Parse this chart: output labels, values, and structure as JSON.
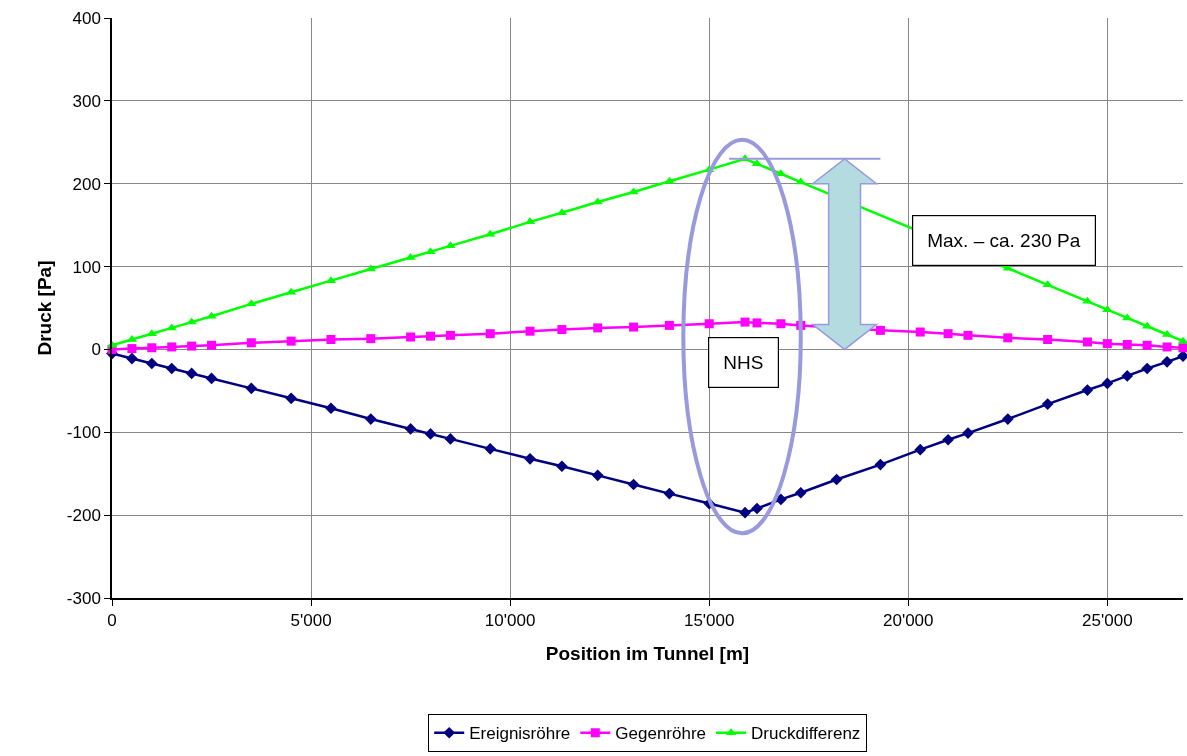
{
  "chart_data": {
    "type": "line",
    "xlabel": "Position im Tunnel [m]",
    "ylabel": "Druck [Pa]",
    "x": [
      0,
      500,
      1000,
      1500,
      2000,
      2500,
      3500,
      4500,
      5500,
      6500,
      7500,
      8000,
      8500,
      9500,
      10500,
      11300,
      12200,
      13100,
      14000,
      15000,
      15900,
      16200,
      16800,
      17300,
      18200,
      19300,
      20300,
      21000,
      21500,
      22500,
      23500,
      24500,
      25000,
      25500,
      26000,
      26500,
      26900
    ],
    "series": [
      {
        "name": "Ereignisröhre",
        "color": "#000080",
        "marker": "diamond",
        "values": [
          -5,
          -11,
          -17,
          -23,
          -29,
          -35,
          -47,
          -59,
          -71,
          -84,
          -96,
          -102,
          -108,
          -120,
          -132,
          -141,
          -152,
          -163,
          -174,
          -186,
          -197,
          -192,
          -181,
          -173,
          -157,
          -139,
          -121,
          -109,
          -101,
          -84,
          -66,
          -49,
          -41,
          -32,
          -23,
          -15,
          -8
        ]
      },
      {
        "name": "Gegenröhre",
        "color": "#ff00ff",
        "marker": "square",
        "values": [
          0,
          1,
          2,
          3,
          4,
          5,
          8,
          10,
          12,
          13,
          15,
          16,
          17,
          19,
          22,
          24,
          26,
          27,
          29,
          31,
          33,
          32,
          31,
          29,
          null,
          23,
          21,
          19,
          17,
          14,
          12,
          9,
          7,
          6,
          5,
          3,
          2
        ]
      },
      {
        "name": "Druckdifferenz",
        "color": "#00ff00",
        "marker": "triangle",
        "values": [
          5,
          12,
          19,
          26,
          33,
          40,
          55,
          69,
          83,
          97,
          111,
          118,
          125,
          139,
          154,
          165,
          178,
          190,
          203,
          217,
          230,
          224,
          212,
          202,
          null,
          null,
          null,
          null,
          null,
          98,
          78,
          58,
          48,
          38,
          28,
          18,
          10
        ]
      }
    ],
    "xlim": [
      0,
      26900
    ],
    "xticks": [
      0,
      {
        "value": 5000,
        "label": "5'000"
      },
      {
        "value": 10000,
        "label": "10'000"
      },
      {
        "value": 15000,
        "label": "15'000"
      },
      {
        "value": 20000,
        "label": "20'000"
      },
      {
        "value": 25000,
        "label": "25'000"
      }
    ],
    "ylim": [
      -300,
      400
    ],
    "yticks": [
      -300,
      -200,
      -100,
      0,
      100,
      200,
      300,
      400
    ],
    "grid": true,
    "legend": "bottom",
    "line_style": "solid",
    "annotations": [
      "NHS",
      "Max. – ca. 230 Pa"
    ]
  }
}
